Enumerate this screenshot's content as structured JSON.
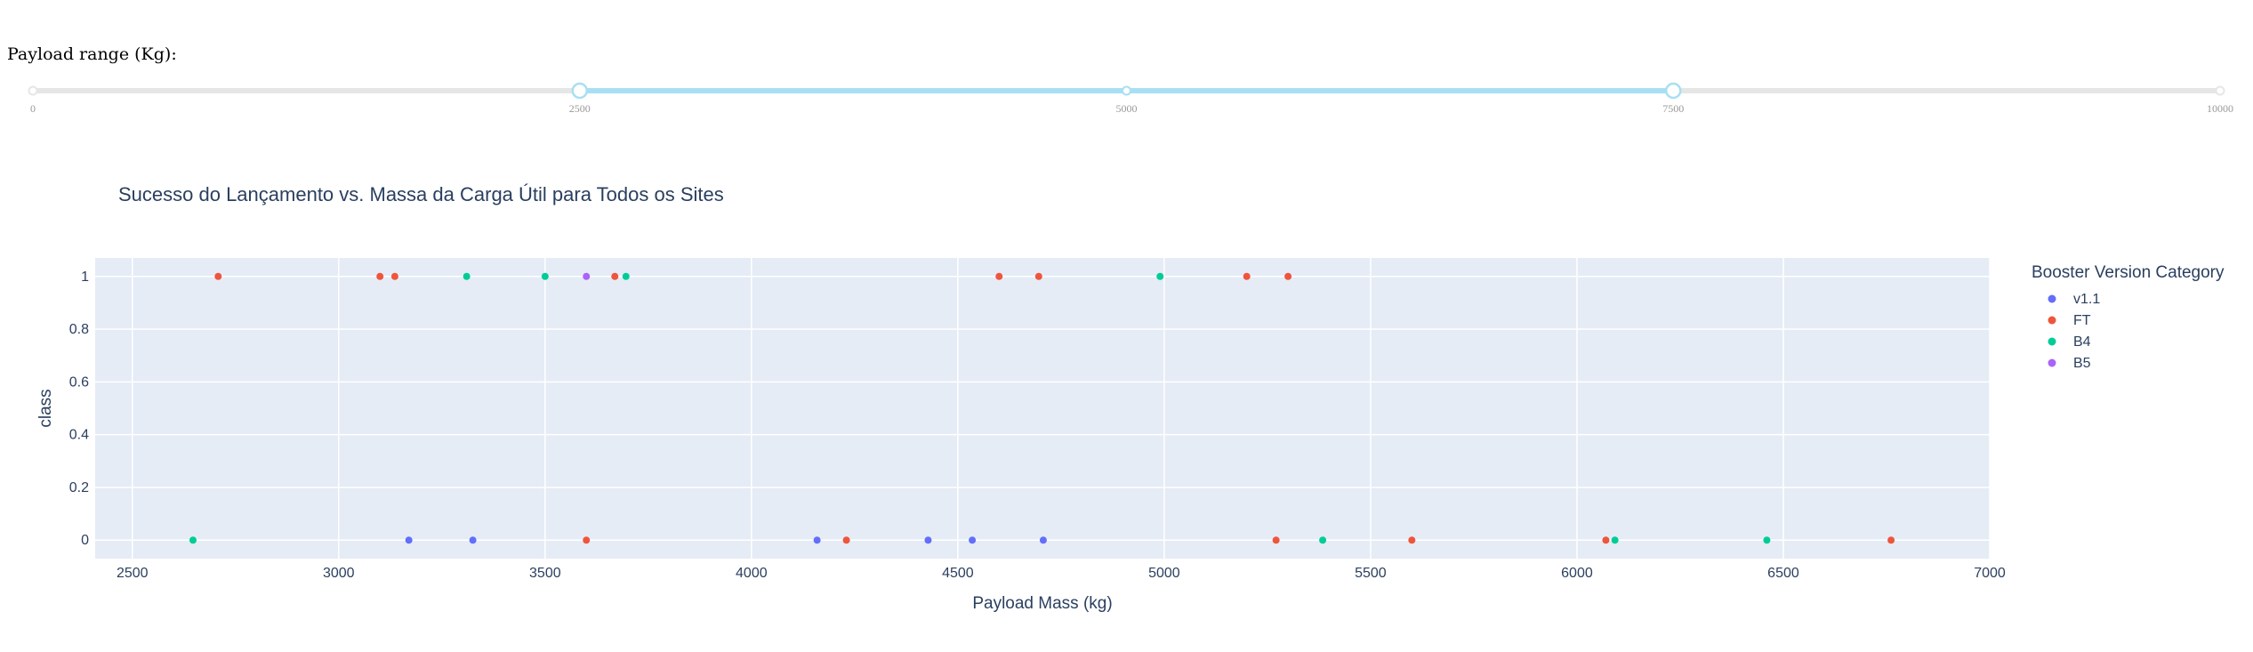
{
  "slider": {
    "label": "Payload range (Kg):",
    "min": 0,
    "max": 10000,
    "marks": [
      "0",
      "2500",
      "5000",
      "7500",
      "10000"
    ],
    "mark_values": [
      0,
      2500,
      5000,
      7500,
      10000
    ],
    "selected": [
      2500,
      7500
    ],
    "track_color": "#e6e6e6",
    "active_color": "#a8dff2"
  },
  "chart_data": {
    "type": "scatter",
    "title": "Sucesso do Lançamento vs. Massa da Carga Útil para Todos os Sites",
    "xlabel": "Payload Mass (kg)",
    "ylabel": "class",
    "xlim": [
      2410,
      7000
    ],
    "ylim": [
      -0.07,
      1.07
    ],
    "xticks": [
      2500,
      3000,
      3500,
      4000,
      4500,
      5000,
      5500,
      6000,
      6500,
      7000
    ],
    "xtick_labels": [
      "2500",
      "3000",
      "3500",
      "4000",
      "4500",
      "5000",
      "5500",
      "6000",
      "6500",
      "7000"
    ],
    "yticks": [
      0,
      0.2,
      0.4,
      0.6,
      0.8,
      1
    ],
    "ytick_labels": [
      "0",
      "0.2",
      "0.4",
      "0.6",
      "0.8",
      "1"
    ],
    "legend_title": "Booster Version Category",
    "legend_position": "right",
    "grid": true,
    "plot_bg": "#e5ecf6",
    "series": [
      {
        "name": "v1.1",
        "color": "#636efa",
        "points": [
          [
            3170,
            0
          ],
          [
            3325,
            0
          ],
          [
            4159,
            0
          ],
          [
            4428,
            0
          ],
          [
            4535,
            0
          ],
          [
            4707,
            0
          ]
        ]
      },
      {
        "name": "FT",
        "color": "#ef553b",
        "points": [
          [
            2708,
            1
          ],
          [
            3100,
            1
          ],
          [
            3136,
            1
          ],
          [
            3669,
            1
          ],
          [
            4600,
            1
          ],
          [
            4696,
            1
          ],
          [
            5200,
            1
          ],
          [
            5300,
            1
          ],
          [
            3600,
            0
          ],
          [
            4230,
            0
          ],
          [
            5271,
            0
          ],
          [
            5600,
            0
          ],
          [
            6070,
            0
          ],
          [
            6761,
            0
          ]
        ]
      },
      {
        "name": "B4",
        "color": "#00cc96",
        "points": [
          [
            3310,
            1
          ],
          [
            3500,
            1
          ],
          [
            3696,
            1
          ],
          [
            4990,
            1
          ],
          [
            2647,
            0
          ],
          [
            5384,
            0
          ],
          [
            6092,
            0
          ],
          [
            6460,
            0
          ]
        ]
      },
      {
        "name": "B5",
        "color": "#ab63fa",
        "points": [
          [
            3600,
            1
          ]
        ]
      }
    ]
  }
}
